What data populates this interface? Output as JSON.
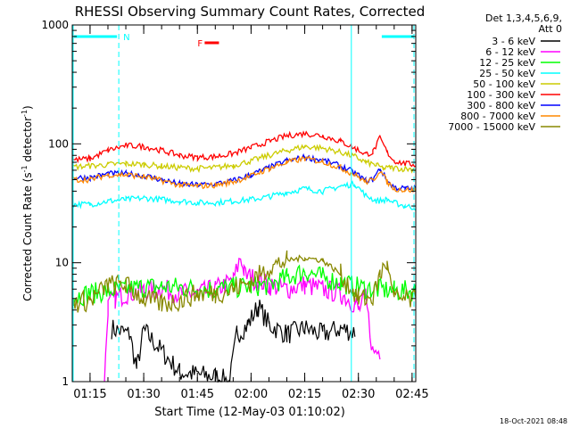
{
  "chart_data": {
    "type": "line",
    "title": "RHESSI Observing Summary Count Rates, Corrected",
    "xlabel": "Start Time (12-May-03 01:10:02)",
    "ylabel_main": "Corrected Count Rate (s",
    "ylabel_sup1": "-1",
    "ylabel_mid": " detector",
    "ylabel_sup2": "-1",
    "ylabel_end": ")",
    "y_scale": "log",
    "ylim": [
      1,
      1000
    ],
    "xlim_minutes_after_start": [
      0,
      96
    ],
    "x_ticks": [
      {
        "label": "01:15",
        "minutes": 4.97
      },
      {
        "label": "01:30",
        "minutes": 19.97
      },
      {
        "label": "01:45",
        "minutes": 34.97
      },
      {
        "label": "02:00",
        "minutes": 49.97
      },
      {
        "label": "02:15",
        "minutes": 64.97
      },
      {
        "label": "02:30",
        "minutes": 79.97
      },
      {
        "label": "02:45",
        "minutes": 94.97
      }
    ],
    "y_ticks": [
      {
        "label": "1",
        "value": 1
      },
      {
        "label": "10",
        "value": 10
      },
      {
        "label": "100",
        "value": 100
      },
      {
        "label": "1000",
        "value": 1000
      }
    ],
    "legend_header": [
      "Det 1,3,4,5,6,9,",
      "Att 0"
    ],
    "legend_position": "top-right, outside plot",
    "series": [
      {
        "name": "3 - 6 keV",
        "color": "#000000",
        "x": [
          0,
          10,
          11,
          16,
          18,
          20,
          30,
          40,
          44,
          46,
          49,
          52,
          55,
          60,
          65,
          70,
          75,
          79,
          80,
          90,
          96
        ],
        "y": [
          null,
          null,
          2.8,
          2.5,
          1.3,
          2.7,
          1.2,
          1.1,
          1.0,
          2.5,
          3.0,
          4.3,
          3.0,
          2.5,
          2.8,
          2.5,
          2.8,
          2.6,
          null,
          null,
          null
        ]
      },
      {
        "name": "6 - 12 keV",
        "color": "#ff00ff",
        "x": [
          0,
          8,
          9,
          10,
          12,
          15,
          20,
          25,
          30,
          35,
          40,
          45,
          47,
          48,
          50,
          55,
          60,
          65,
          70,
          75,
          79,
          80,
          82,
          84,
          86,
          90,
          96
        ],
        "y": [
          null,
          null,
          1.0,
          4.3,
          5.0,
          5.5,
          5.8,
          6.0,
          5.5,
          5.5,
          6.0,
          7.0,
          11.0,
          8.0,
          7.5,
          6.5,
          6.0,
          6.5,
          6.0,
          5.5,
          4.5,
          4.0,
          5.0,
          1.8,
          1.8,
          null,
          null
        ]
      },
      {
        "name": "12 - 25 keV",
        "color": "#00ff00",
        "x": [
          0,
          5,
          10,
          15,
          20,
          25,
          30,
          35,
          40,
          45,
          50,
          55,
          60,
          65,
          70,
          75,
          80,
          85,
          90,
          96
        ],
        "y": [
          5.2,
          5.5,
          5.8,
          6.0,
          6.2,
          6.3,
          6.2,
          6.0,
          6.0,
          6.2,
          6.3,
          6.5,
          7.5,
          8.5,
          7.5,
          6.8,
          6.2,
          6.0,
          5.8,
          5.8
        ]
      },
      {
        "name": "25 - 50 keV",
        "color": "#00ffff",
        "x": [
          0,
          5,
          10,
          15,
          20,
          25,
          30,
          35,
          40,
          45,
          50,
          55,
          60,
          65,
          70,
          75,
          79,
          82,
          85,
          88,
          90,
          93,
          96
        ],
        "y": [
          31,
          31,
          33,
          34,
          35,
          34,
          33,
          32,
          32,
          33,
          34,
          36,
          39,
          42,
          40,
          44,
          46,
          37,
          33,
          34,
          32,
          30,
          29
        ]
      },
      {
        "name": "50 - 100 keV",
        "color": "#cccc00",
        "x": [
          0,
          5,
          10,
          15,
          20,
          25,
          30,
          35,
          40,
          45,
          50,
          55,
          60,
          65,
          70,
          75,
          79,
          82,
          85,
          87,
          89,
          92,
          96
        ],
        "y": [
          64,
          65,
          67,
          68,
          67,
          65,
          63,
          62,
          63,
          66,
          72,
          80,
          88,
          95,
          92,
          85,
          78,
          70,
          66,
          62,
          63,
          62,
          61
        ]
      },
      {
        "name": "100 - 300 keV",
        "color": "#ff0000",
        "x": [
          0,
          5,
          10,
          15,
          20,
          25,
          30,
          35,
          40,
          45,
          50,
          55,
          60,
          65,
          70,
          75,
          79,
          82,
          84,
          86,
          88,
          90,
          93,
          96
        ],
        "y": [
          73,
          75,
          88,
          97,
          95,
          88,
          80,
          77,
          78,
          83,
          93,
          105,
          117,
          122,
          117,
          105,
          92,
          82,
          85,
          112,
          85,
          72,
          68,
          67
        ]
      },
      {
        "name": "300 - 800 keV",
        "color": "#0000ff",
        "x": [
          0,
          5,
          10,
          15,
          20,
          25,
          30,
          35,
          40,
          45,
          50,
          55,
          60,
          65,
          70,
          75,
          79,
          82,
          84,
          86,
          88,
          90,
          93,
          96
        ],
        "y": [
          52,
          52,
          56,
          56,
          54,
          50,
          46,
          45,
          46,
          49,
          55,
          63,
          72,
          77,
          73,
          65,
          57,
          49,
          50,
          62,
          49,
          43,
          42,
          42
        ]
      },
      {
        "name": "800 - 7000 keV",
        "color": "#ff8800",
        "x": [
          0,
          5,
          10,
          15,
          20,
          25,
          30,
          35,
          40,
          45,
          50,
          55,
          60,
          65,
          70,
          75,
          79,
          82,
          84,
          86,
          88,
          90,
          93,
          96
        ],
        "y": [
          50,
          50,
          55,
          55,
          53,
          49,
          45,
          44,
          45,
          48,
          54,
          62,
          70,
          75,
          71,
          63,
          55,
          48,
          49,
          60,
          48,
          42,
          41,
          41
        ]
      },
      {
        "name": "7000 - 15000 keV",
        "color": "#888800",
        "x": [
          0,
          5,
          10,
          15,
          20,
          25,
          30,
          35,
          40,
          45,
          50,
          55,
          60,
          65,
          70,
          75,
          80,
          84,
          86,
          88,
          90,
          96
        ],
        "y": [
          4.6,
          4.8,
          6.5,
          6.5,
          5.0,
          4.5,
          4.8,
          5.5,
          5.5,
          6.0,
          7.0,
          9.0,
          10.5,
          11.0,
          10.5,
          8.0,
          5.0,
          5.0,
          8.0,
          10.0,
          5.0,
          4.8
        ]
      }
    ],
    "markers": {
      "saa_bars_minutes": [
        [
          0,
          13
        ],
        [
          86,
          96
        ]
      ],
      "night_lines_minutes": [
        0,
        13,
        78,
        95.5
      ],
      "night_dashed_minutes": [
        13,
        95.5
      ],
      "night_solid_minutes": [
        0,
        78
      ],
      "saa_label": "N",
      "flare_label": "F",
      "flare_bar_minutes": [
        37,
        41
      ]
    }
  },
  "footer_timestamp": "18-Oct-2021 08:48"
}
